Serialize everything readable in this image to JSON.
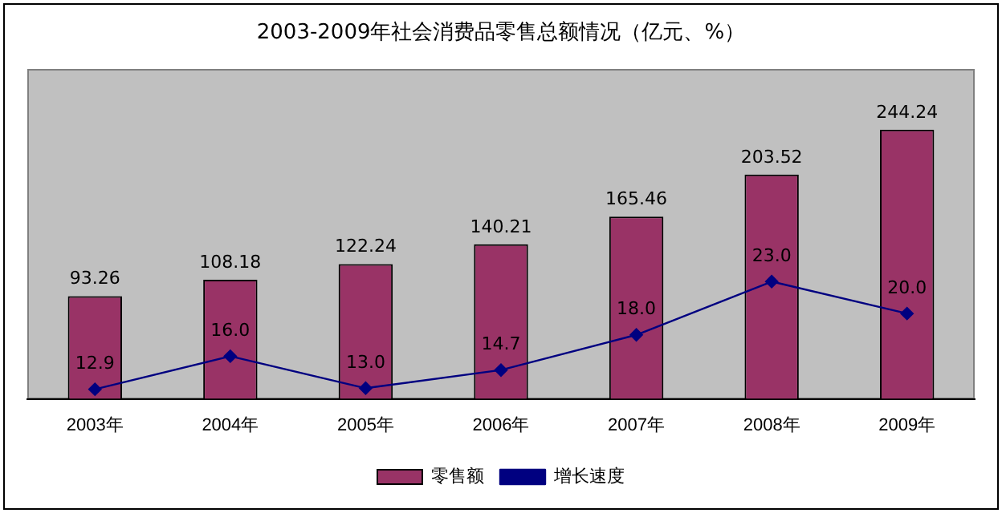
{
  "chart_data": {
    "type": "bar",
    "title": "2003-2009年社会消费品零售总额情况（亿元、%）",
    "categories": [
      "2003年",
      "2004年",
      "2005年",
      "2006年",
      "2007年",
      "2008年",
      "2009年"
    ],
    "series": [
      {
        "name": "零售额",
        "color": "#993366",
        "values": [
          93.26,
          108.18,
          122.24,
          140.21,
          165.46,
          203.52,
          244.24
        ],
        "value_labels": [
          "93.26",
          "108.18",
          "122.24",
          "140.21",
          "165.46",
          "203.52",
          "244.24"
        ]
      },
      {
        "name": "增长速度",
        "type": "line",
        "axis": "y2",
        "color": "#000080",
        "values": [
          12.9,
          16.0,
          13.0,
          14.7,
          18.0,
          23.0,
          20.0
        ],
        "value_labels": [
          "12.9",
          "16.0",
          "13.0",
          "14.7",
          "18.0",
          "23.0",
          "20.0"
        ]
      }
    ],
    "ylim": [
      0,
      300
    ],
    "y2lim": [
      12,
      43
    ],
    "tick_labels": "x",
    "legend": "bottom",
    "marker": "diamond",
    "grid": false
  }
}
